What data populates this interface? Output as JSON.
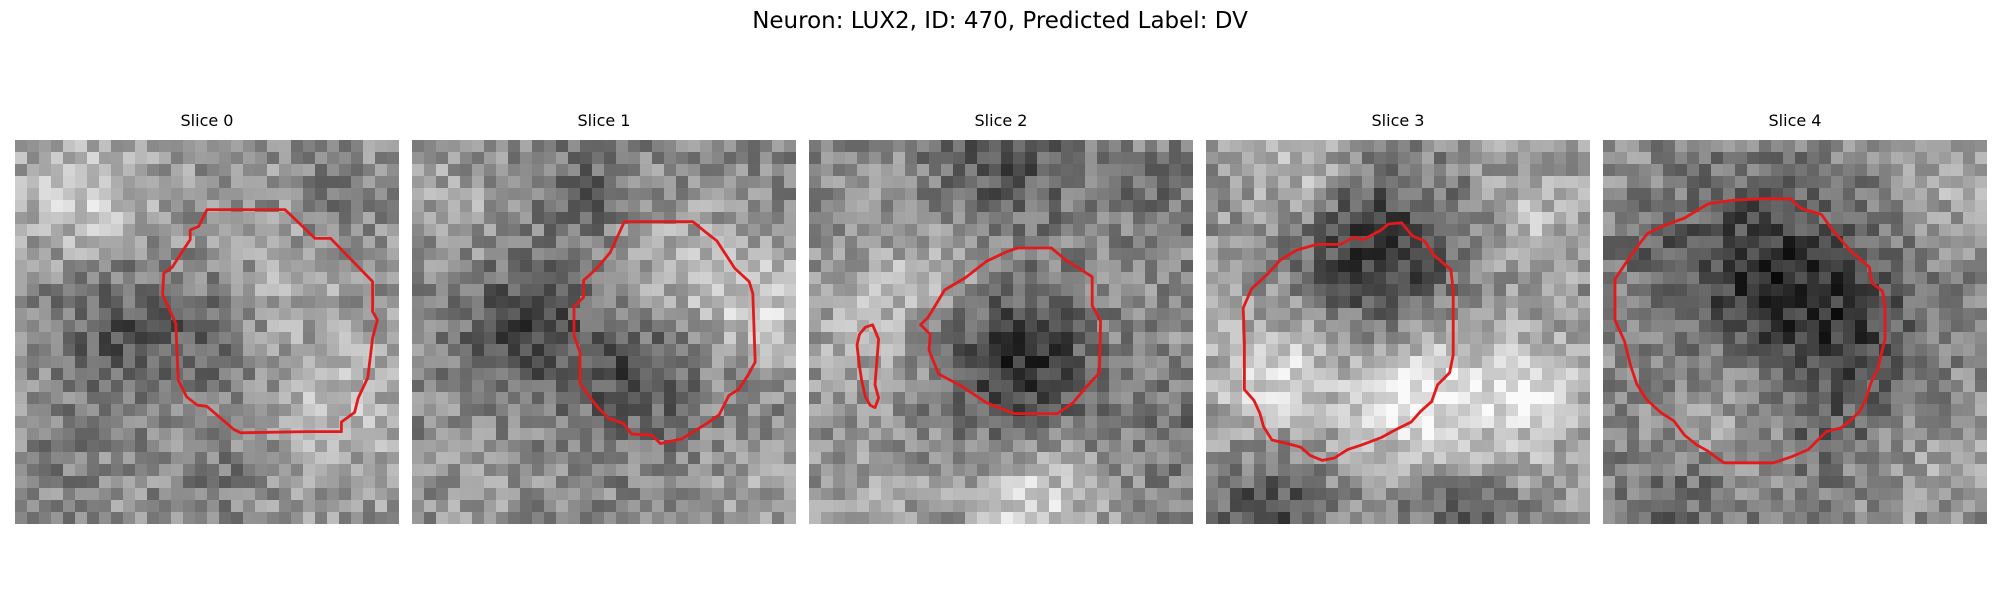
{
  "figure": {
    "title": "Neuron: LUX2, ID: 470, Predicted Label: DV",
    "contour_color": "#e31a1c"
  },
  "panels": [
    {
      "title": "Slice 0"
    },
    {
      "title": "Slice 1"
    },
    {
      "title": "Slice 2"
    },
    {
      "title": "Slice 3"
    },
    {
      "title": "Slice 4"
    }
  ]
}
